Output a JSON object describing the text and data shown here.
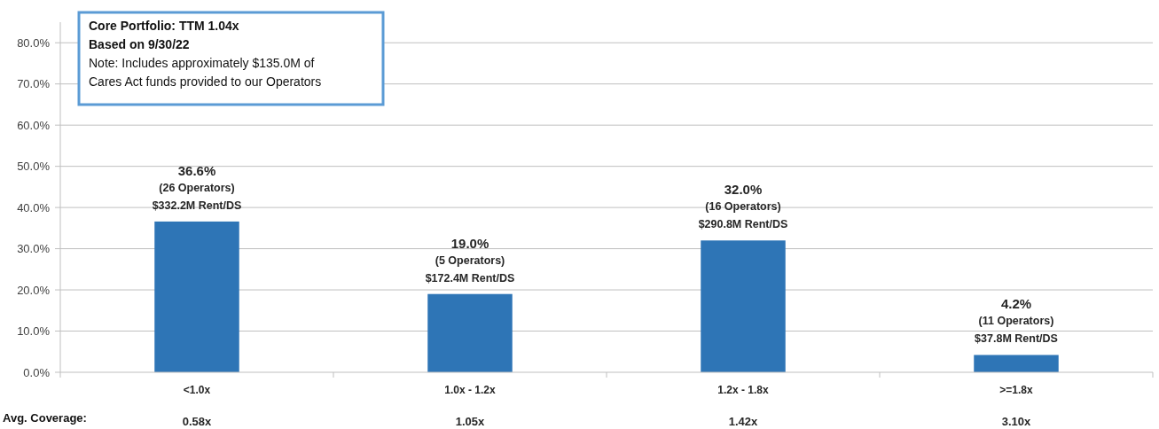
{
  "chart_data": {
    "type": "bar",
    "title": "Core Portfolio: TTM 1.04x",
    "subtitle": "Based on 9/30/22",
    "annotations": [
      "Note: Includes approximately $135.0M of Cares Act funds provided to our Operators",
      "Avg. Coverage:",
      "0.58x",
      "1.05x",
      "1.42x",
      "3.10x"
    ],
    "categories": [
      "<1.0x",
      "1.0x - 1.2x",
      "1.2x - 1.8x",
      ">=1.8x"
    ],
    "values": [
      36.6,
      19.0,
      32.0,
      4.2
    ],
    "value_labels": [
      "36.6%\n(26 Operators)\n$332.2M Rent/DS",
      "19.0%\n(5 Operators)\n$172.4M Rent/DS",
      "32.0%\n(16 Operators)\n$290.8M Rent/DS",
      "4.2%\n(11 Operators)\n$37.8M Rent/DS"
    ],
    "color": "#2e75b6",
    "ylim": [
      0,
      85
    ],
    "yticks": [
      {
        "value": 0,
        "label": "0.0%"
      },
      {
        "value": 10,
        "label": "10.0%"
      },
      {
        "value": 20,
        "label": "20.0%"
      },
      {
        "value": 30,
        "label": "30.0%"
      },
      {
        "value": 40,
        "label": "40.0%"
      },
      {
        "value": 50,
        "label": "50.0%"
      },
      {
        "value": 60,
        "label": "60.0%"
      },
      {
        "value": 70,
        "label": "70.0%"
      },
      {
        "value": 80,
        "label": "80.0%"
      }
    ],
    "grid": "y"
  }
}
